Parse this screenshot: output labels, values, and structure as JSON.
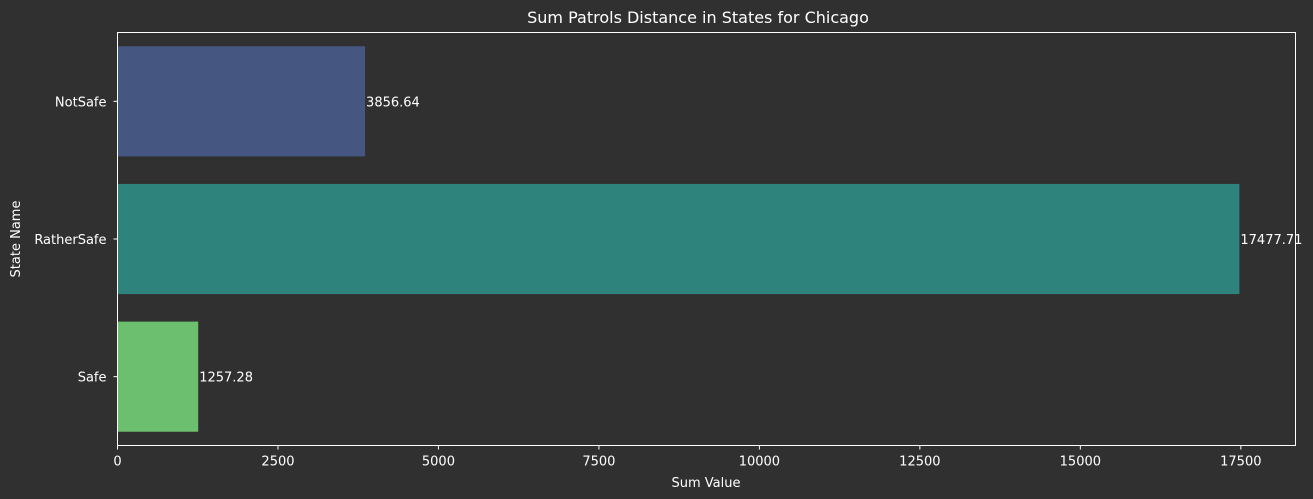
{
  "chart_data": {
    "type": "bar",
    "orientation": "horizontal",
    "title": "Sum Patrols Distance in States for Chicago",
    "xlabel": "Sum Value",
    "ylabel": "State Name",
    "categories": [
      "NotSafe",
      "RatherSafe",
      "Safe"
    ],
    "values": [
      3856.64,
      17477.71,
      1257.28
    ],
    "value_labels": [
      "3856.64",
      "17477.71",
      "1257.28"
    ],
    "colors": [
      "#455681",
      "#2e837d",
      "#6cbf6f"
    ],
    "xlim": [
      0,
      18352
    ],
    "xticks": [
      0,
      2500,
      5000,
      7500,
      10000,
      12500,
      15000,
      17500
    ],
    "xtick_labels": [
      "0",
      "2500",
      "5000",
      "7500",
      "10000",
      "12500",
      "15000",
      "17500"
    ],
    "grid": false,
    "legend": "none",
    "background": "#303030",
    "axis_color": "#ffffff",
    "text_color": "#ffffff"
  }
}
